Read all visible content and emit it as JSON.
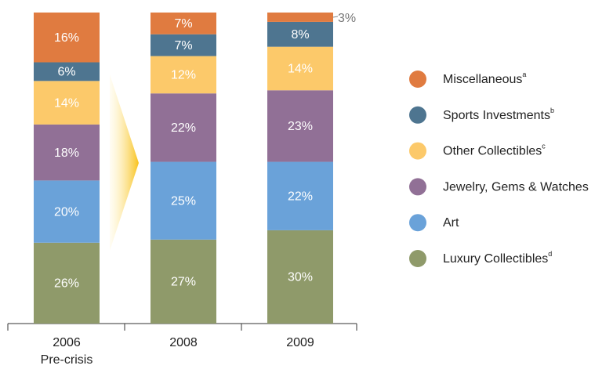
{
  "chart_data": {
    "type": "stacked_bar",
    "categories": [
      "2006",
      "2008",
      "2009"
    ],
    "category_sublabels": [
      "Pre-crisis",
      null,
      null
    ],
    "series": [
      {
        "name": "Luxury Collectibles",
        "note": "d",
        "color": "#8f9a6a",
        "values": [
          26,
          27,
          30
        ],
        "value_labels": [
          "26%",
          "27%",
          "30%"
        ]
      },
      {
        "name": "Art",
        "note": null,
        "color": "#6aa2d9",
        "values": [
          20,
          25,
          22
        ],
        "value_labels": [
          "20%",
          "25%",
          "22%"
        ]
      },
      {
        "name": "Jewelry, Gems & Watches",
        "note": null,
        "color": "#917096",
        "values": [
          18,
          22,
          23
        ],
        "value_labels": [
          "18%",
          "22%",
          "23%"
        ]
      },
      {
        "name": "Other Collectibles",
        "note": "c",
        "color": "#fcc96a",
        "values": [
          14,
          12,
          14
        ],
        "value_labels": [
          "14%",
          "12%",
          "14%"
        ]
      },
      {
        "name": "Sports Investments",
        "note": "b",
        "color": "#4e7590",
        "values": [
          6,
          7,
          8
        ],
        "value_labels": [
          "6%",
          "7%",
          "8%"
        ]
      },
      {
        "name": "Miscellaneous",
        "note": "a",
        "color": "#e07b40",
        "values": [
          16,
          7,
          3
        ],
        "value_labels": [
          "16%",
          "7%",
          "3%"
        ]
      }
    ]
  }
}
